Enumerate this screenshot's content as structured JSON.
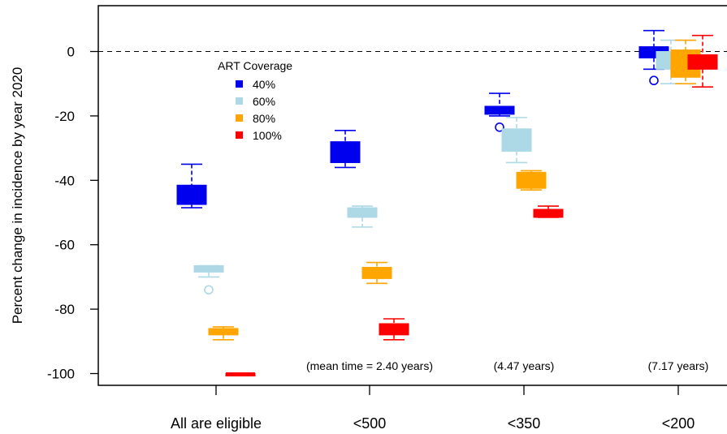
{
  "chart_data": {
    "type": "box",
    "title": "",
    "xlabel": "",
    "ylabel": "Percent change in incidence by year 2020",
    "categories": [
      "All are eligible",
      "<500",
      "<350",
      "<200"
    ],
    "ylim": [
      -104,
      15
    ],
    "yticks": [
      0,
      -20,
      -40,
      -60,
      -80,
      -100
    ],
    "reference_line": 0,
    "legend": {
      "title": "ART Coverage",
      "placement": "upper-left",
      "entries": [
        "40%",
        "60%",
        "80%",
        "100%"
      ]
    },
    "series": [
      {
        "name": "40%",
        "color": "#0000ee",
        "boxes": [
          {
            "low": -48.5,
            "q1": -47.5,
            "median": -45,
            "q3": -41.5,
            "high": -35,
            "outliers": []
          },
          {
            "low": -36,
            "q1": -34.5,
            "median": -32,
            "q3": -28,
            "high": -24.5,
            "outliers": []
          },
          {
            "low": -20,
            "q1": -19.5,
            "median": -18.5,
            "q3": -17,
            "high": -13,
            "outliers": [
              -23.5
            ]
          },
          {
            "low": -5.5,
            "q1": -2,
            "median": 0,
            "q3": 1.5,
            "high": 6.5,
            "outliers": [
              -9
            ]
          }
        ]
      },
      {
        "name": "60%",
        "color": "#add8e6",
        "boxes": [
          {
            "low": -70,
            "q1": -68.5,
            "median": -68,
            "q3": -66.5,
            "high": -66.5,
            "outliers": [
              -74
            ]
          },
          {
            "low": -54.5,
            "q1": -51.5,
            "median": -50.5,
            "q3": -48.5,
            "high": -48,
            "outliers": []
          },
          {
            "low": -34.5,
            "q1": -31,
            "median": -28,
            "q3": -24,
            "high": -20.5,
            "outliers": []
          },
          {
            "low": -10,
            "q1": -5.5,
            "median": -3,
            "q3": 0,
            "high": 3.5,
            "outliers": []
          }
        ]
      },
      {
        "name": "80%",
        "color": "#ffa500",
        "boxes": [
          {
            "low": -89.5,
            "q1": -88,
            "median": -87,
            "q3": -86,
            "high": -85.5,
            "outliers": []
          },
          {
            "low": -72,
            "q1": -70.5,
            "median": -69,
            "q3": -67,
            "high": -65.5,
            "outliers": []
          },
          {
            "low": -43,
            "q1": -42.5,
            "median": -40,
            "q3": -37.5,
            "high": -37,
            "outliers": []
          },
          {
            "low": -10,
            "q1": -8,
            "median": -4,
            "q3": 0.5,
            "high": 3.5,
            "outliers": []
          }
        ]
      },
      {
        "name": "100%",
        "color": "#ff0000",
        "boxes": [
          {
            "low": -100,
            "q1": -100,
            "median": -100,
            "q3": -100,
            "high": -100,
            "outliers": []
          },
          {
            "low": -89.5,
            "q1": -88,
            "median": -86.5,
            "q3": -84.5,
            "high": -83,
            "outliers": []
          },
          {
            "low": -51.5,
            "q1": -51.5,
            "median": -50.5,
            "q3": -49,
            "high": -48,
            "outliers": []
          },
          {
            "low": -11,
            "q1": -5.5,
            "median": -3,
            "q3": -1,
            "high": 5,
            "outliers": []
          }
        ]
      }
    ],
    "annotations": [
      "(mean time = 2.40 years)",
      "(4.47 years)",
      "(7.17 years)"
    ]
  }
}
